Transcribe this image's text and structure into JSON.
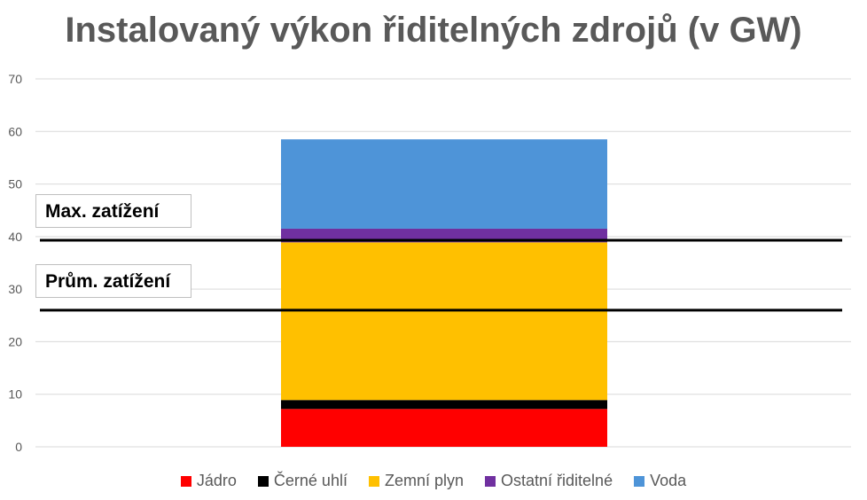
{
  "chart_data": {
    "type": "bar",
    "stacked": true,
    "title": "Instalovaný výkon řiditelných zdrojů (v GW)",
    "categories": [
      ""
    ],
    "series": [
      {
        "name": "Jádro",
        "values": [
          7.2
        ],
        "color": "#ff0000"
      },
      {
        "name": "Černé uhlí",
        "values": [
          1.7
        ],
        "color": "#000000"
      },
      {
        "name": "Zemní plyn",
        "values": [
          30.0
        ],
        "color": "#ffc000"
      },
      {
        "name": "Ostatní řiditelné",
        "values": [
          2.6
        ],
        "color": "#7030a0"
      },
      {
        "name": "Voda",
        "values": [
          17.0
        ],
        "color": "#4e94d8"
      }
    ],
    "ylim": [
      0,
      70
    ],
    "yticks": [
      0,
      10,
      20,
      30,
      40,
      50,
      60,
      70
    ],
    "grid": true,
    "legend": "bottom",
    "annotations": [
      {
        "label": "Max. zatížení",
        "value": 39.3
      },
      {
        "label": "Prům. zatížení",
        "value": 26.0
      }
    ]
  }
}
